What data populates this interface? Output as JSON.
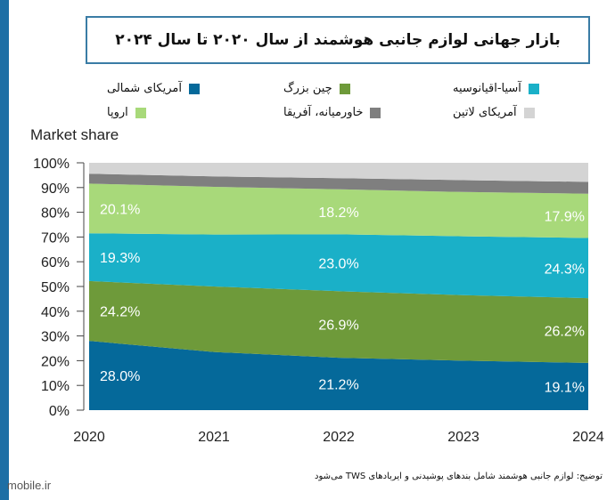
{
  "title": "بازار جهانی لوازم جانبی هوشمند از سال ۲۰۲۰ تا سال ۲۰۲۴",
  "watermark": "mobile.ir",
  "note": "توضیح: لوازم جانبی هوشمند شامل بندهای پوشیدنی و ایربادهای TWS می‌شود",
  "colors": {
    "north_america": "#05699a",
    "china": "#6e9a3a",
    "asia_pacific": "#1ab0c8",
    "europe": "#a8d97a",
    "mea": "#7f7f7f",
    "latam": "#d4d4d4",
    "frame": "#3a7ca5"
  },
  "chart_data": {
    "type": "area",
    "stacked": true,
    "title": "بازار جهانی لوازم جانبی هوشمند از سال ۲۰۲۰ تا سال ۲۰۲۴",
    "ylabel": "Market share",
    "xlabel": "",
    "x": [
      "2020",
      "2021",
      "2022",
      "2023",
      "2024"
    ],
    "ylim": [
      0,
      100
    ],
    "yticks": [
      "0%",
      "10%",
      "20%",
      "30%",
      "40%",
      "50%",
      "60%",
      "70%",
      "80%",
      "90%",
      "100%"
    ],
    "grid": false,
    "legend_position": "top",
    "series": [
      {
        "name": "آمریکای شمالی",
        "color": "#05699a",
        "values": [
          28.0,
          23.5,
          21.2,
          20.0,
          19.1
        ]
      },
      {
        "name": "چین بزرگ",
        "color": "#6e9a3a",
        "values": [
          24.2,
          26.5,
          26.9,
          26.5,
          26.2
        ]
      },
      {
        "name": "آسیا-اقیانوسیه",
        "color": "#1ab0c8",
        "values": [
          19.3,
          21.0,
          23.0,
          23.8,
          24.3
        ]
      },
      {
        "name": "اروپا",
        "color": "#a8d97a",
        "values": [
          20.1,
          19.3,
          18.2,
          17.9,
          17.9
        ]
      },
      {
        "name": "خاورمیانه، آفریقا",
        "color": "#7f7f7f",
        "values": [
          4.0,
          4.2,
          4.5,
          4.8,
          4.8
        ]
      },
      {
        "name": "آمریکای لاتین",
        "color": "#d4d4d4",
        "values": [
          4.4,
          5.5,
          6.2,
          7.0,
          7.7
        ]
      }
    ],
    "data_labels": [
      {
        "series": 0,
        "x": "2020",
        "text": "28.0%"
      },
      {
        "series": 0,
        "x": "2022",
        "text": "21.2%"
      },
      {
        "series": 0,
        "x": "2024",
        "text": "19.1%"
      },
      {
        "series": 1,
        "x": "2020",
        "text": "24.2%"
      },
      {
        "series": 1,
        "x": "2022",
        "text": "26.9%"
      },
      {
        "series": 1,
        "x": "2024",
        "text": "26.2%"
      },
      {
        "series": 2,
        "x": "2020",
        "text": "19.3%"
      },
      {
        "series": 2,
        "x": "2022",
        "text": "23.0%"
      },
      {
        "series": 2,
        "x": "2024",
        "text": "24.3%"
      },
      {
        "series": 3,
        "x": "2020",
        "text": "20.1%"
      },
      {
        "series": 3,
        "x": "2022",
        "text": "18.2%"
      },
      {
        "series": 3,
        "x": "2024",
        "text": "17.9%"
      }
    ]
  }
}
